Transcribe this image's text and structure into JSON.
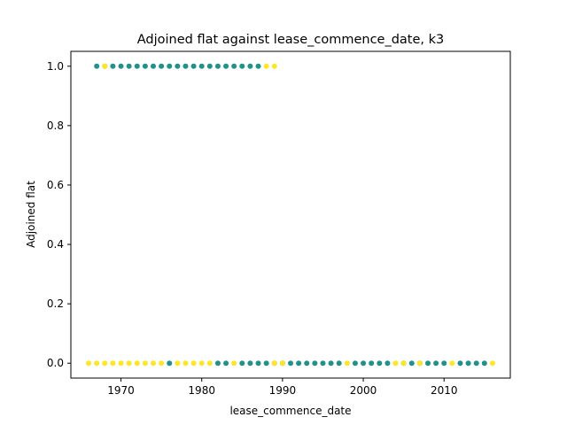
{
  "chart_data": {
    "type": "scatter",
    "title": "Adjoined flat against lease_commence_date, k3",
    "xlabel": "lease_commence_date",
    "ylabel": "Adjoined flat",
    "xlim": [
      1963.8,
      2018.2
    ],
    "ylim": [
      -0.05,
      1.05
    ],
    "xticks": [
      1970,
      1980,
      1990,
      2000,
      2010
    ],
    "yticks": [
      0.0,
      0.2,
      0.4,
      0.6,
      0.8,
      1.0
    ],
    "xtick_labels": [
      "1970",
      "1980",
      "1990",
      "2000",
      "2010"
    ],
    "ytick_labels": [
      "0.0",
      "0.2",
      "0.4",
      "0.6",
      "0.8",
      "1.0"
    ],
    "grid": false,
    "legend": false,
    "colors": {
      "teal": "#21918c",
      "yellow": "#fde725"
    },
    "series": [
      {
        "color": "teal",
        "points": [
          [
            1967,
            1
          ],
          [
            1968,
            1
          ],
          [
            1969,
            1
          ],
          [
            1970,
            1
          ],
          [
            1971,
            1
          ],
          [
            1972,
            1
          ],
          [
            1973,
            1
          ],
          [
            1974,
            1
          ],
          [
            1975,
            1
          ],
          [
            1976,
            1
          ],
          [
            1977,
            1
          ],
          [
            1978,
            1
          ],
          [
            1979,
            1
          ],
          [
            1980,
            1
          ],
          [
            1981,
            1
          ],
          [
            1982,
            1
          ],
          [
            1983,
            1
          ],
          [
            1984,
            1
          ],
          [
            1985,
            1
          ],
          [
            1986,
            1
          ],
          [
            1987,
            1
          ],
          [
            1976,
            0
          ],
          [
            1982,
            0
          ],
          [
            1983,
            0
          ],
          [
            1985,
            0
          ],
          [
            1986,
            0
          ],
          [
            1987,
            0
          ],
          [
            1988,
            0
          ],
          [
            1989,
            0
          ],
          [
            1990,
            0
          ],
          [
            1991,
            0
          ],
          [
            1992,
            0
          ],
          [
            1993,
            0
          ],
          [
            1994,
            0
          ],
          [
            1995,
            0
          ],
          [
            1996,
            0
          ],
          [
            1997,
            0
          ],
          [
            1999,
            0
          ],
          [
            2000,
            0
          ],
          [
            2001,
            0
          ],
          [
            2002,
            0
          ],
          [
            2003,
            0
          ],
          [
            2005,
            0
          ],
          [
            2006,
            0
          ],
          [
            2007,
            0
          ],
          [
            2008,
            0
          ],
          [
            2009,
            0
          ],
          [
            2010,
            0
          ],
          [
            2012,
            0
          ],
          [
            2013,
            0
          ],
          [
            2014,
            0
          ],
          [
            2015,
            0
          ]
        ]
      },
      {
        "color": "yellow",
        "points": [
          [
            1968,
            1
          ],
          [
            1988,
            1
          ],
          [
            1989,
            1
          ],
          [
            1966,
            0
          ],
          [
            1967,
            0
          ],
          [
            1968,
            0
          ],
          [
            1969,
            0
          ],
          [
            1970,
            0
          ],
          [
            1971,
            0
          ],
          [
            1972,
            0
          ],
          [
            1973,
            0
          ],
          [
            1974,
            0
          ],
          [
            1975,
            0
          ],
          [
            1977,
            0
          ],
          [
            1978,
            0
          ],
          [
            1979,
            0
          ],
          [
            1980,
            0
          ],
          [
            1981,
            0
          ],
          [
            1984,
            0
          ],
          [
            1989,
            0
          ],
          [
            1990,
            0
          ],
          [
            1998,
            0
          ],
          [
            2004,
            0
          ],
          [
            2005,
            0
          ],
          [
            2007,
            0
          ],
          [
            2011,
            0
          ],
          [
            2016,
            0
          ]
        ]
      }
    ]
  }
}
